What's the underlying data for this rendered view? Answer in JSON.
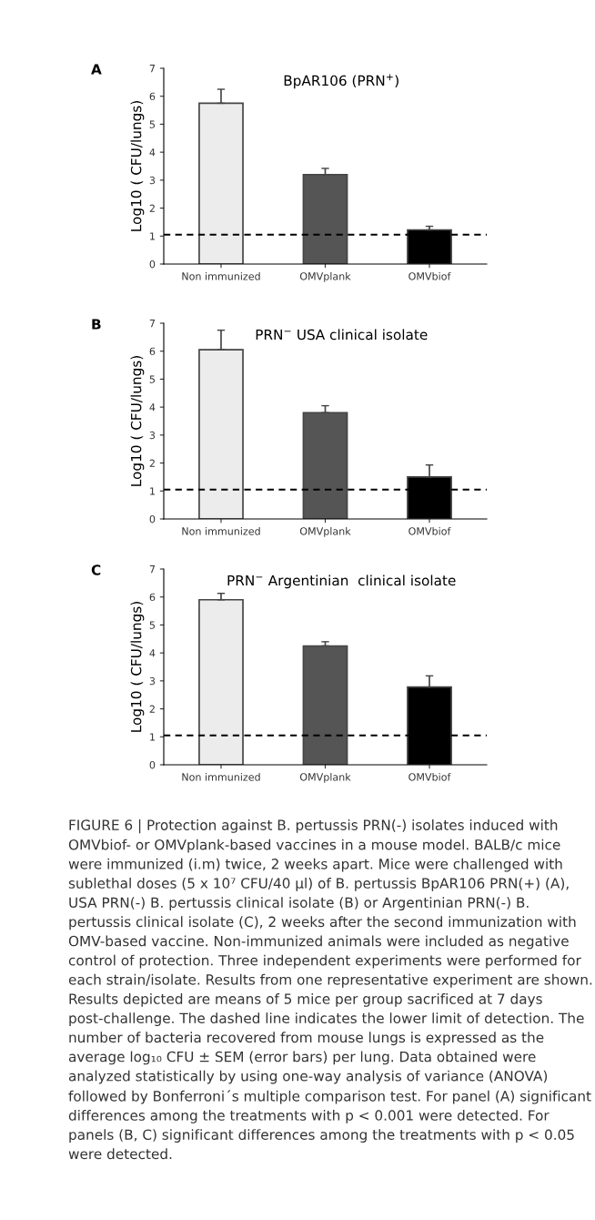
{
  "chart_data": [
    {
      "type": "bar",
      "title": "BpAR106 (PRN$^{+}$)",
      "ylabel": "Log10 ( CFU/lungs)",
      "categories": [
        "Non immunized",
        "OMVplank",
        "OMVbiof"
      ],
      "values": [
        5.75,
        3.2,
        1.22
      ],
      "colors": [
        "#ececec",
        "#555555",
        "#000000"
      ],
      "errors": [
        [
          5.75,
          6.25
        ],
        [
          3.2,
          3.42
        ],
        [
          1.22,
          1.35
        ]
      ],
      "ylim": [
        0,
        7
      ],
      "yticks": [
        0,
        1,
        2,
        3,
        4,
        5,
        6,
        7
      ],
      "ref_lines": [
        {
          "axis": "y",
          "value": 1.05,
          "color": "#000000",
          "line_style": "dashed"
        }
      ],
      "grid": false,
      "annotations": [
        "A"
      ]
    },
    {
      "type": "bar",
      "title": "PRN$^{−}$ USA clinical isolate",
      "ylabel": "Log10 ( CFU/lungs)",
      "categories": [
        "Non immunized",
        "OMVplank",
        "OMVbiof"
      ],
      "values": [
        6.05,
        3.8,
        1.5
      ],
      "colors": [
        "#ececec",
        "#555555",
        "#000000"
      ],
      "errors": [
        [
          6.05,
          6.75
        ],
        [
          3.8,
          4.05
        ],
        [
          1.5,
          1.93
        ]
      ],
      "ylim": [
        0,
        7
      ],
      "yticks": [
        0,
        1,
        2,
        3,
        4,
        5,
        6,
        7
      ],
      "ref_lines": [
        {
          "axis": "y",
          "value": 1.05,
          "color": "#000000",
          "line_style": "dashed"
        }
      ],
      "grid": false,
      "annotations": [
        "B"
      ]
    },
    {
      "type": "bar",
      "title": "PRN$^{−}$ Argentinian  clinical isolate",
      "ylabel": "Log10 ( CFU/lungs)",
      "categories": [
        "Non immunized",
        "OMVplank",
        "OMVbiof"
      ],
      "values": [
        5.9,
        4.25,
        2.78
      ],
      "colors": [
        "#ececec",
        "#555555",
        "#000000"
      ],
      "errors": [
        [
          5.9,
          6.13
        ],
        [
          4.25,
          4.4
        ],
        [
          2.78,
          3.18
        ]
      ],
      "ylim": [
        0,
        7
      ],
      "yticks": [
        0,
        1,
        2,
        3,
        4,
        5,
        6,
        7
      ],
      "ref_lines": [
        {
          "axis": "y",
          "value": 1.05,
          "color": "#000000",
          "line_style": "dashed"
        }
      ],
      "grid": false,
      "annotations": [
        "C",
        "FIGURE 6 | Protection against B. pertussis PRN(-) isolates induced with OMVbiof- or OMVplank-based vaccines in a mouse model. BALB/c mice were immunized (i.m) twice, 2 weeks apart. Mice were challenged with sublethal doses (5 x 10⁷ CFU/40 µl) of B. pertussis BpAR106 PRN(+) (A), USA PRN(-) B. pertussis clinical isolate (B) or Argentinian PRN(-) B. pertussis clinical isolate (C), 2 weeks after the second immunization with OMV-based vaccine. Non-immunized animals were included as negative control of protection. Three independent experiments were performed for each strain/isolate. Results from one representative experiment are shown. Results depicted are means of 5 mice per group sacrificed at 7 days post-challenge. The dashed line indicates the lower limit of detection. The number of bacteria recovered from mouse lungs is expressed as the average log₁₀ CFU ± SEM (error bars) per lung. Data obtained were analyzed statistically by using one-way analysis of variance (ANOVA) followed by Bonferroni´s multiple comparison test. For panel (A) significant differences among the treatments with p < 0.001 were detected. For panels (B, C) significant differences among the treatments with p < 0.05 were detected."
      ]
    }
  ]
}
